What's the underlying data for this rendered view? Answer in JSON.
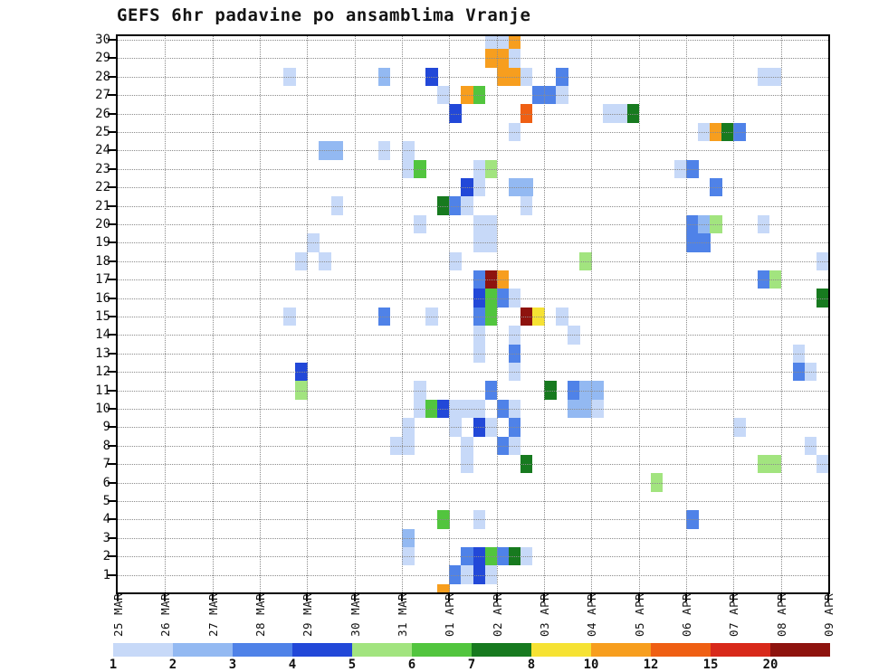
{
  "title": "GEFS 6hr padavine po ansamblima Vranje",
  "colorbar": {
    "tick_labels": [
      "1",
      "2",
      "3",
      "4",
      "5",
      "6",
      "7",
      "8",
      "10",
      "12",
      "15",
      "20"
    ]
  },
  "chart_data": {
    "type": "heatmap",
    "title": "GEFS 6hr padavine po ansamblima Vranje",
    "xlabel": "",
    "ylabel": "",
    "x_days": [
      "25 MAR",
      "26 MAR",
      "27 MAR",
      "28 MAR",
      "29 MAR",
      "30 MAR",
      "31 MAR",
      "01 APR",
      "02 APR",
      "03 APR",
      "04 APR",
      "05 APR",
      "06 APR",
      "07 APR",
      "08 APR",
      "09 APR"
    ],
    "slots_per_day": 4,
    "slot_hours": 6,
    "y_members": [
      30,
      29,
      28,
      27,
      26,
      25,
      24,
      23,
      22,
      21,
      20,
      19,
      18,
      17,
      16,
      15,
      14,
      13,
      12,
      11,
      10,
      9,
      8,
      7,
      6,
      5,
      4,
      3,
      2,
      1
    ],
    "level_bounds_mm": [
      1,
      2,
      3,
      4,
      5,
      6,
      7,
      8,
      10,
      12,
      15,
      20
    ],
    "level_ranges": [
      "1-2",
      "2-3",
      "3-4",
      "4-5",
      "5-6",
      "6-7",
      "7-8",
      "8-10",
      "10-12",
      "12-15",
      "15-20",
      "20+"
    ],
    "palette": [
      "#c7d9f8",
      "#93b9f2",
      "#4f82e8",
      "#2248d8",
      "#a2e47f",
      "#52c53e",
      "#177a1f",
      "#f6e233",
      "#f79e1e",
      "#ef5f13",
      "#d8291a",
      "#8e130e"
    ],
    "grid_color": "#8c8c8c",
    "cells": [
      {
        "m": 30,
        "c": 31,
        "l": 1,
        "s": 2
      },
      {
        "m": 30,
        "c": 33,
        "l": 9
      },
      {
        "m": 29,
        "c": 31,
        "l": 9,
        "s": 2
      },
      {
        "m": 29,
        "c": 33,
        "l": 1
      },
      {
        "m": 28,
        "c": 14,
        "l": 1
      },
      {
        "m": 28,
        "c": 22,
        "l": 2
      },
      {
        "m": 28,
        "c": 26,
        "l": 4
      },
      {
        "m": 28,
        "c": 32,
        "l": 9,
        "s": 2
      },
      {
        "m": 28,
        "c": 34,
        "l": 1
      },
      {
        "m": 28,
        "c": 37,
        "l": 3
      },
      {
        "m": 28,
        "c": 54,
        "l": 1,
        "s": 2
      },
      {
        "m": 27,
        "c": 27,
        "l": 1
      },
      {
        "m": 27,
        "c": 29,
        "l": 9
      },
      {
        "m": 27,
        "c": 30,
        "l": 6
      },
      {
        "m": 27,
        "c": 35,
        "l": 3
      },
      {
        "m": 27,
        "c": 36,
        "l": 3
      },
      {
        "m": 27,
        "c": 37,
        "l": 1
      },
      {
        "m": 26,
        "c": 28,
        "l": 4
      },
      {
        "m": 26,
        "c": 34,
        "l": 10
      },
      {
        "m": 26,
        "c": 41,
        "l": 1,
        "s": 2
      },
      {
        "m": 26,
        "c": 43,
        "l": 7
      },
      {
        "m": 25,
        "c": 33,
        "l": 1
      },
      {
        "m": 25,
        "c": 49,
        "l": 1
      },
      {
        "m": 25,
        "c": 50,
        "l": 9
      },
      {
        "m": 25,
        "c": 51,
        "l": 7
      },
      {
        "m": 25,
        "c": 52,
        "l": 3
      },
      {
        "m": 24,
        "c": 17,
        "l": 2,
        "s": 2
      },
      {
        "m": 24,
        "c": 22,
        "l": 1
      },
      {
        "m": 24,
        "c": 24,
        "l": 1
      },
      {
        "m": 23,
        "c": 24,
        "l": 1
      },
      {
        "m": 23,
        "c": 25,
        "l": 6
      },
      {
        "m": 23,
        "c": 30,
        "l": 1
      },
      {
        "m": 23,
        "c": 31,
        "l": 5
      },
      {
        "m": 23,
        "c": 47,
        "l": 1
      },
      {
        "m": 23,
        "c": 48,
        "l": 3
      },
      {
        "m": 22,
        "c": 29,
        "l": 4
      },
      {
        "m": 22,
        "c": 30,
        "l": 1
      },
      {
        "m": 22,
        "c": 33,
        "l": 2,
        "s": 2
      },
      {
        "m": 22,
        "c": 50,
        "l": 3
      },
      {
        "m": 21,
        "c": 18,
        "l": 1
      },
      {
        "m": 21,
        "c": 27,
        "l": 7
      },
      {
        "m": 21,
        "c": 28,
        "l": 3
      },
      {
        "m": 21,
        "c": 29,
        "l": 1
      },
      {
        "m": 21,
        "c": 34,
        "l": 1
      },
      {
        "m": 20,
        "c": 25,
        "l": 1
      },
      {
        "m": 20,
        "c": 30,
        "l": 1,
        "s": 2
      },
      {
        "m": 20,
        "c": 48,
        "l": 3
      },
      {
        "m": 20,
        "c": 49,
        "l": 2
      },
      {
        "m": 20,
        "c": 50,
        "l": 5
      },
      {
        "m": 20,
        "c": 54,
        "l": 1
      },
      {
        "m": 19,
        "c": 16,
        "l": 1
      },
      {
        "m": 19,
        "c": 30,
        "l": 1,
        "s": 2
      },
      {
        "m": 19,
        "c": 48,
        "l": 3,
        "s": 2
      },
      {
        "m": 18,
        "c": 15,
        "l": 1
      },
      {
        "m": 18,
        "c": 17,
        "l": 1
      },
      {
        "m": 18,
        "c": 28,
        "l": 1
      },
      {
        "m": 18,
        "c": 39,
        "l": 5
      },
      {
        "m": 18,
        "c": 59,
        "l": 1
      },
      {
        "m": 17,
        "c": 30,
        "l": 3
      },
      {
        "m": 17,
        "c": 31,
        "l": 12
      },
      {
        "m": 17,
        "c": 32,
        "l": 9
      },
      {
        "m": 17,
        "c": 54,
        "l": 3
      },
      {
        "m": 17,
        "c": 55,
        "l": 5
      },
      {
        "m": 16,
        "c": 30,
        "l": 4
      },
      {
        "m": 16,
        "c": 31,
        "l": 6
      },
      {
        "m": 16,
        "c": 32,
        "l": 3
      },
      {
        "m": 16,
        "c": 33,
        "l": 1
      },
      {
        "m": 16,
        "c": 59,
        "l": 7
      },
      {
        "m": 15,
        "c": 14,
        "l": 1
      },
      {
        "m": 15,
        "c": 22,
        "l": 3
      },
      {
        "m": 15,
        "c": 26,
        "l": 1
      },
      {
        "m": 15,
        "c": 30,
        "l": 3
      },
      {
        "m": 15,
        "c": 31,
        "l": 6
      },
      {
        "m": 15,
        "c": 34,
        "l": 12
      },
      {
        "m": 15,
        "c": 35,
        "l": 8
      },
      {
        "m": 15,
        "c": 37,
        "l": 1
      },
      {
        "m": 14,
        "c": 30,
        "l": 1
      },
      {
        "m": 14,
        "c": 33,
        "l": 1
      },
      {
        "m": 14,
        "c": 38,
        "l": 1
      },
      {
        "m": 13,
        "c": 30,
        "l": 1
      },
      {
        "m": 13,
        "c": 33,
        "l": 3
      },
      {
        "m": 13,
        "c": 57,
        "l": 1
      },
      {
        "m": 12,
        "c": 15,
        "l": 4
      },
      {
        "m": 12,
        "c": 33,
        "l": 1
      },
      {
        "m": 12,
        "c": 57,
        "l": 3
      },
      {
        "m": 12,
        "c": 58,
        "l": 1
      },
      {
        "m": 11,
        "c": 15,
        "l": 5
      },
      {
        "m": 11,
        "c": 25,
        "l": 1
      },
      {
        "m": 11,
        "c": 31,
        "l": 3
      },
      {
        "m": 11,
        "c": 36,
        "l": 7
      },
      {
        "m": 11,
        "c": 38,
        "l": 3
      },
      {
        "m": 11,
        "c": 39,
        "l": 2,
        "s": 2
      },
      {
        "m": 10,
        "c": 25,
        "l": 1
      },
      {
        "m": 10,
        "c": 26,
        "l": 6
      },
      {
        "m": 10,
        "c": 27,
        "l": 4
      },
      {
        "m": 10,
        "c": 28,
        "l": 1,
        "s": 3
      },
      {
        "m": 10,
        "c": 32,
        "l": 3
      },
      {
        "m": 10,
        "c": 33,
        "l": 1
      },
      {
        "m": 10,
        "c": 38,
        "l": 2,
        "s": 2
      },
      {
        "m": 10,
        "c": 40,
        "l": 1
      },
      {
        "m": 9,
        "c": 24,
        "l": 1
      },
      {
        "m": 9,
        "c": 28,
        "l": 1
      },
      {
        "m": 9,
        "c": 30,
        "l": 4
      },
      {
        "m": 9,
        "c": 31,
        "l": 1
      },
      {
        "m": 9,
        "c": 33,
        "l": 3
      },
      {
        "m": 9,
        "c": 52,
        "l": 1
      },
      {
        "m": 8,
        "c": 23,
        "l": 1,
        "s": 2
      },
      {
        "m": 8,
        "c": 29,
        "l": 1
      },
      {
        "m": 8,
        "c": 32,
        "l": 3
      },
      {
        "m": 8,
        "c": 33,
        "l": 1
      },
      {
        "m": 8,
        "c": 58,
        "l": 1
      },
      {
        "m": 7,
        "c": 29,
        "l": 1
      },
      {
        "m": 7,
        "c": 34,
        "l": 7
      },
      {
        "m": 7,
        "c": 54,
        "l": 5,
        "s": 2
      },
      {
        "m": 7,
        "c": 59,
        "l": 1
      },
      {
        "m": 6,
        "c": 45,
        "l": 5
      },
      {
        "m": 4,
        "c": 27,
        "l": 6
      },
      {
        "m": 4,
        "c": 30,
        "l": 1
      },
      {
        "m": 4,
        "c": 48,
        "l": 3
      },
      {
        "m": 3,
        "c": 24,
        "l": 2
      },
      {
        "m": 2,
        "c": 24,
        "l": 1
      },
      {
        "m": 2,
        "c": 29,
        "l": 3
      },
      {
        "m": 2,
        "c": 30,
        "l": 4
      },
      {
        "m": 2,
        "c": 31,
        "l": 6
      },
      {
        "m": 2,
        "c": 32,
        "l": 3
      },
      {
        "m": 2,
        "c": 33,
        "l": 7
      },
      {
        "m": 2,
        "c": 34,
        "l": 1
      },
      {
        "m": 1,
        "c": 28,
        "l": 3
      },
      {
        "m": 1,
        "c": 29,
        "l": 1
      },
      {
        "m": 1,
        "c": 30,
        "l": 4
      },
      {
        "m": 1,
        "c": 31,
        "l": 1
      },
      {
        "m": 0,
        "c": 27,
        "l": 9
      }
    ]
  }
}
